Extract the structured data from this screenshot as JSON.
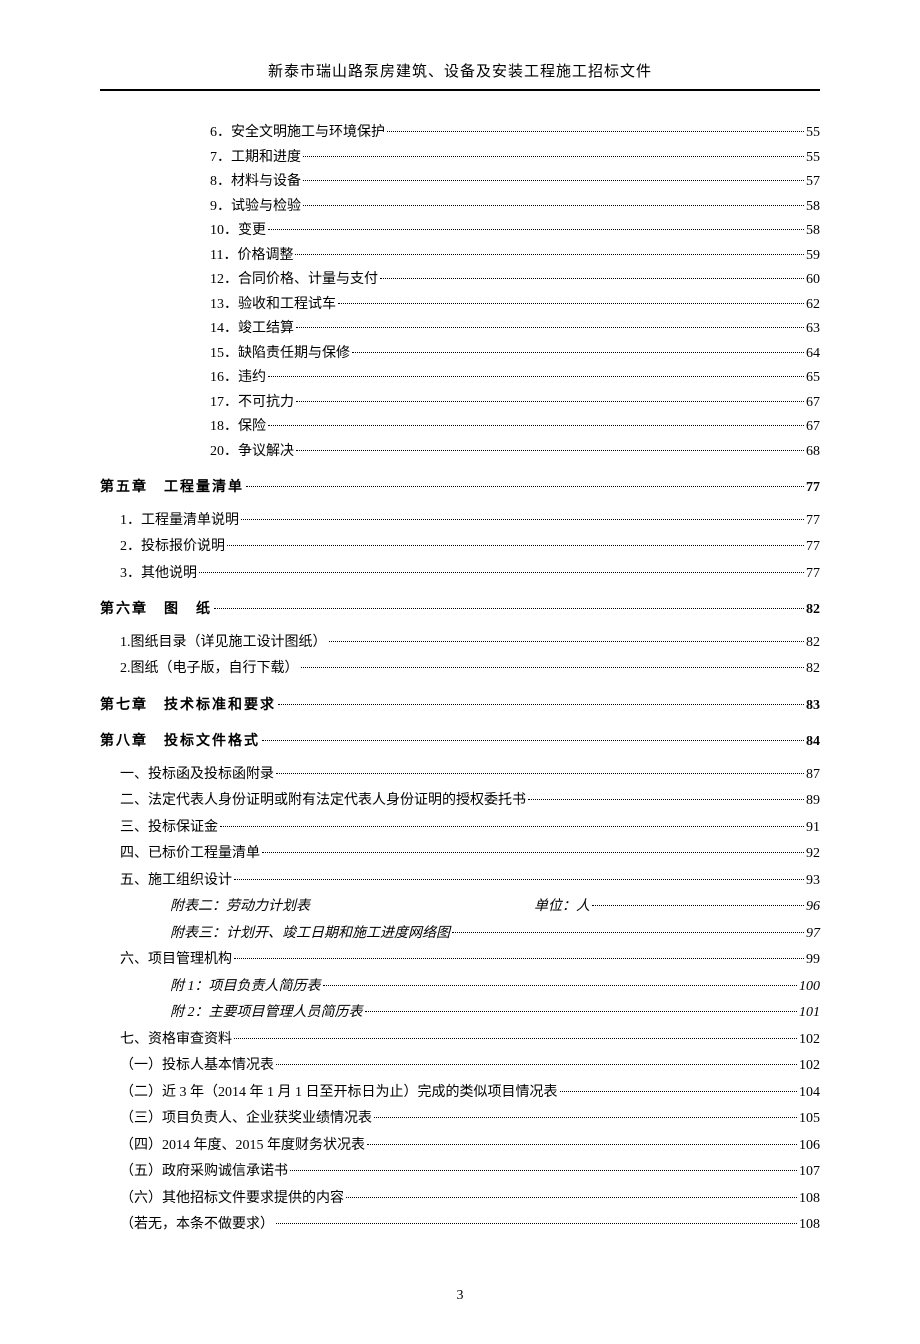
{
  "header": "新泰市瑞山路泵房建筑、设备及安装工程施工招标文件",
  "pageNumber": "3",
  "entries": [
    {
      "level": "level-3",
      "label": "6．安全文明施工与环境保护",
      "page": "55"
    },
    {
      "level": "level-3",
      "label": "7．工期和进度",
      "page": "55"
    },
    {
      "level": "level-3",
      "label": "8．材料与设备",
      "page": "57"
    },
    {
      "level": "level-3",
      "label": "9．试验与检验",
      "page": "58"
    },
    {
      "level": "level-3",
      "label": "10．变更",
      "page": "58"
    },
    {
      "level": "level-3",
      "label": "11．价格调整",
      "page": "59"
    },
    {
      "level": "level-3",
      "label": "12．合同价格、计量与支付",
      "page": "60"
    },
    {
      "level": "level-3",
      "label": "13．验收和工程试车",
      "page": "62"
    },
    {
      "level": "level-3",
      "label": "14．竣工结算",
      "page": "63"
    },
    {
      "level": "level-3",
      "label": "15．缺陷责任期与保修",
      "page": "64"
    },
    {
      "level": "level-3",
      "label": "16．违约",
      "page": "65"
    },
    {
      "level": "level-3",
      "label": "17．不可抗力",
      "page": "67"
    },
    {
      "level": "level-3",
      "label": "18．保险",
      "page": "67"
    },
    {
      "level": "level-3",
      "label": "20．争议解决",
      "page": "68"
    },
    {
      "level": "level-1",
      "label": "第五章　工程量清单",
      "page": "77"
    },
    {
      "level": "level-2",
      "label": "1．工程量清单说明",
      "page": "77"
    },
    {
      "level": "level-2",
      "label": "2．投标报价说明",
      "page": "77"
    },
    {
      "level": "level-2",
      "label": "3．其他说明",
      "page": "77"
    },
    {
      "level": "level-1",
      "label": "第六章　图　纸",
      "page": "82"
    },
    {
      "level": "level-2",
      "label": "1.图纸目录（详见施工设计图纸）",
      "page": "82"
    },
    {
      "level": "level-2",
      "label": "2.图纸（电子版，自行下载）",
      "page": "82"
    },
    {
      "level": "level-1",
      "label": "第七章　技术标准和要求",
      "page": "83"
    },
    {
      "level": "level-1",
      "label": "第八章　投标文件格式",
      "page": "84"
    },
    {
      "level": "level-2",
      "label": "一、投标函及投标函附录",
      "page": "87"
    },
    {
      "level": "level-2",
      "label": "二、法定代表人身份证明或附有法定代表人身份证明的授权委托书",
      "page": "89"
    },
    {
      "level": "level-2",
      "label": "三、投标保证金",
      "page": "91"
    },
    {
      "level": "level-2",
      "label": "四、已标价工程量清单",
      "page": "92"
    },
    {
      "level": "level-2",
      "label": "五、施工组织设计",
      "page": "93"
    },
    {
      "level": "level-2 italic",
      "label": "附表二：劳动力计划表　　　　　　　　　　　　　　　　单位：人",
      "page": "96",
      "style": "italic"
    },
    {
      "level": "level-2 italic",
      "label": "附表三：计划开、竣工日期和施工进度网络图",
      "page": "97",
      "style": "italic"
    },
    {
      "level": "level-2",
      "label": "六、项目管理机构",
      "page": "99"
    },
    {
      "level": "level-2 italic-sub",
      "label": "附 1：项目负责人简历表",
      "page": "100",
      "style": "italic"
    },
    {
      "level": "level-2 italic-sub",
      "label": "附 2：主要项目管理人员简历表",
      "page": "101",
      "style": "italic"
    },
    {
      "level": "level-2",
      "label": "七、资格审查资料",
      "page": "102"
    },
    {
      "level": "level-2",
      "label": "（一）投标人基本情况表",
      "page": "102"
    },
    {
      "level": "level-2",
      "label": "（二）近 3 年（2014 年 1 月 1 日至开标日为止）完成的类似项目情况表",
      "page": "104"
    },
    {
      "level": "level-2",
      "label": "（三）项目负责人、企业获奖业绩情况表",
      "page": "105"
    },
    {
      "level": "level-2",
      "label": "（四）2014 年度、2015 年度财务状况表",
      "page": "106"
    },
    {
      "level": "level-2",
      "label": "（五）政府采购诚信承诺书",
      "page": "107"
    },
    {
      "level": "level-2",
      "label": "（六）其他招标文件要求提供的内容",
      "page": "108"
    },
    {
      "level": "level-2",
      "label": "（若无，本条不做要求）",
      "page": "108"
    }
  ]
}
